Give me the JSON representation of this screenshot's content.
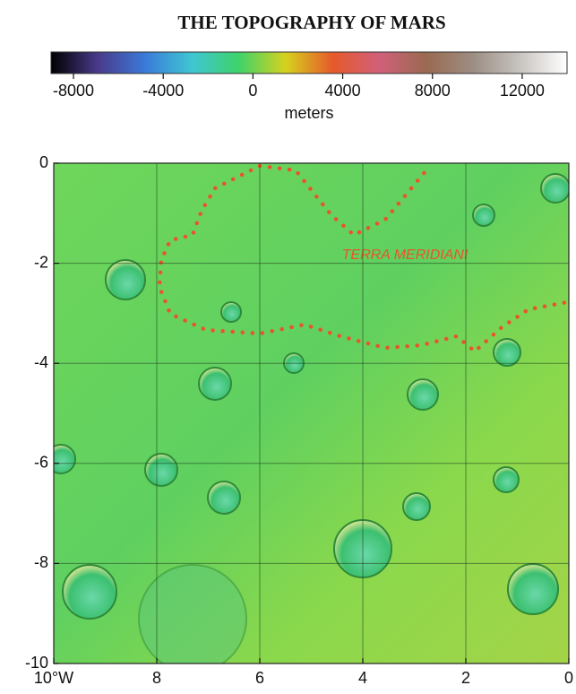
{
  "title": "THE TOPOGRAPHY OF MARS",
  "colorbar": {
    "lim": [
      -9000,
      14000
    ],
    "ticks": [
      -8000,
      -4000,
      0,
      4000,
      8000,
      12000
    ],
    "label": "meters",
    "colors": [
      "#000000",
      "#4a3a8a",
      "#3a7ad8",
      "#3fc6d2",
      "#3fd26a",
      "#d6d21e",
      "#e65a2a",
      "#d0607a",
      "#9a6a50",
      "#9c8e84",
      "#c8c4c0",
      "#ffffff"
    ]
  },
  "map": {
    "xlim": [
      10,
      0
    ],
    "ylim": [
      -10,
      0
    ],
    "xticks": [
      {
        "value": 10,
        "label": "10°W"
      },
      8,
      6,
      4,
      2,
      0
    ],
    "yticks": [
      0,
      -2,
      -4,
      -6,
      -8,
      -10
    ],
    "annotation": "TERRA MERIDIANI"
  }
}
